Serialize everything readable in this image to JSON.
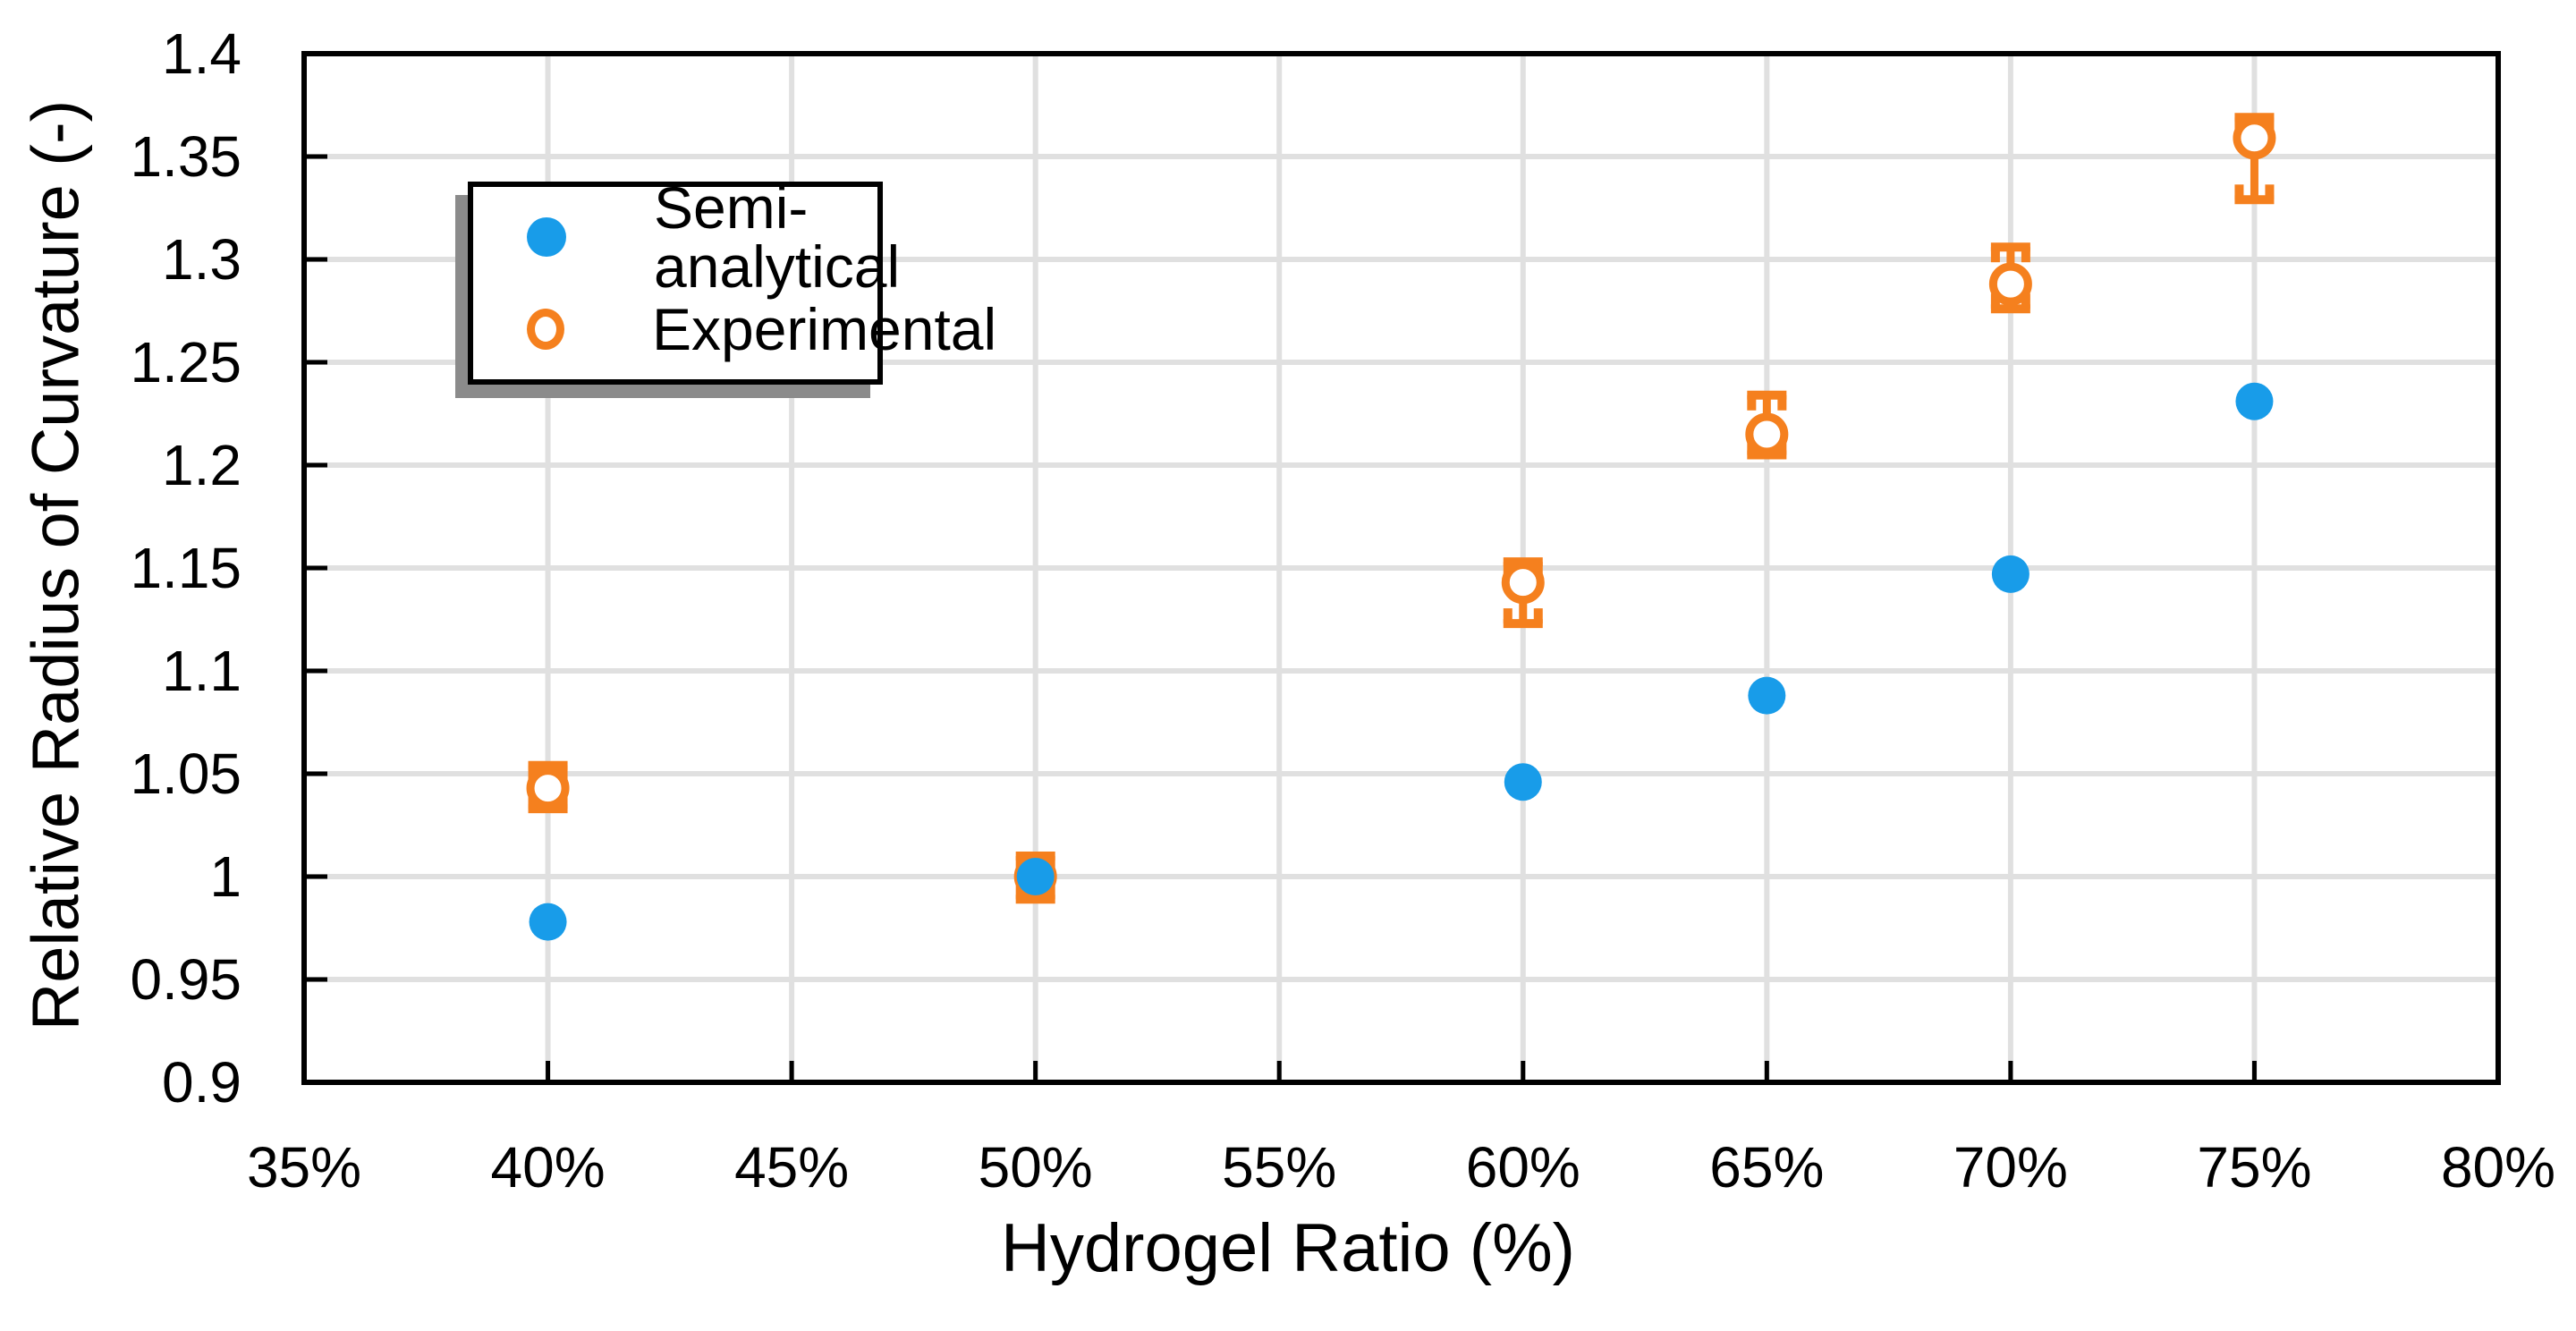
{
  "figure": {
    "background": "#FFFFFF"
  },
  "chart_data": {
    "type": "scatter",
    "title": "",
    "xlabel": "Hydrogel Ratio (%)",
    "ylabel": "Relative Radius of Curvature (-)",
    "xlim": [
      35,
      80
    ],
    "ylim": [
      0.9,
      1.4
    ],
    "xticks": [
      35,
      40,
      45,
      50,
      55,
      60,
      65,
      70,
      75,
      80
    ],
    "xtick_labels": [
      "35%",
      "40%",
      "45%",
      "50%",
      "55%",
      "60%",
      "65%",
      "70%",
      "75%",
      "80%"
    ],
    "yticks": [
      0.9,
      0.95,
      1,
      1.05,
      1.1,
      1.15,
      1.2,
      1.25,
      1.3,
      1.35,
      1.4
    ],
    "ytick_labels": [
      "0.9",
      "0.95",
      "1",
      "1.05",
      "1.1",
      "1.15",
      "1.2",
      "1.25",
      "1.3",
      "1.35",
      "1.4"
    ],
    "grid": true,
    "legend_position": "top-left-inside",
    "series": [
      {
        "name": "Experimental",
        "marker": "open-circle",
        "color": "#F5801E",
        "x": [
          40,
          50,
          60,
          65,
          70,
          75
        ],
        "y": [
          1.043,
          1.0,
          1.143,
          1.215,
          1.288,
          1.359
        ],
        "error_plus": [
          0.011,
          0.01,
          0.01,
          0.019,
          0.018,
          0.01
        ],
        "error_minus": [
          0.01,
          0.011,
          0.02,
          0.01,
          0.012,
          0.03
        ]
      },
      {
        "name": "Semi-analytical",
        "marker": "filled-circle",
        "color": "#189CE9",
        "x": [
          40,
          50,
          60,
          65,
          70,
          75
        ],
        "y": [
          0.978,
          1.0,
          1.046,
          1.088,
          1.147,
          1.231
        ]
      }
    ]
  },
  "legend": {
    "items": [
      {
        "label": "Semi-analytical",
        "marker": "filled-circle",
        "color": "#189CE9"
      },
      {
        "label": "Experimental",
        "marker": "open-circle",
        "color": "#F5801E"
      }
    ]
  },
  "style": {
    "grid_color": "#E0E0E0",
    "axis_color": "#000000",
    "legend_shadow_color": "#8B8B8B"
  }
}
